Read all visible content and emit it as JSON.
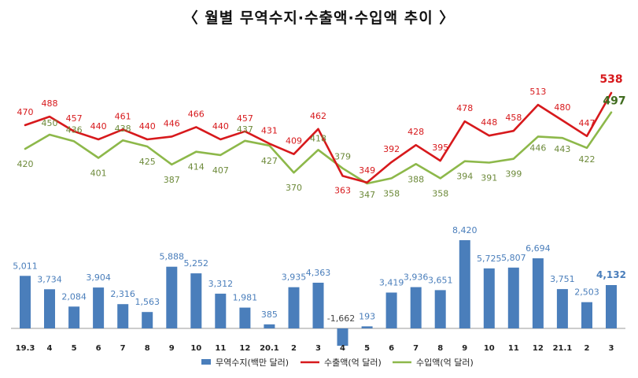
{
  "title": "〈 월별 무역수지·수출액·수입액 추이 〉",
  "chart_data": [
    {
      "type": "line",
      "categories": [
        "19.3",
        "4",
        "5",
        "6",
        "7",
        "8",
        "9",
        "10",
        "11",
        "12",
        "20.1",
        "2",
        "3",
        "4",
        "5",
        "6",
        "7",
        "8",
        "9",
        "10",
        "11",
        "12",
        "21.1",
        "2",
        "3"
      ],
      "series": [
        {
          "name": "수출액(억 달러)",
          "color": "#d7191c",
          "values": [
            470,
            488,
            457,
            440,
            461,
            440,
            446,
            466,
            440,
            457,
            431,
            409,
            462,
            363,
            349,
            392,
            428,
            395,
            478,
            448,
            458,
            513,
            480,
            447,
            538
          ]
        },
        {
          "name": "수입액(억 달러)",
          "color": "#8db84a",
          "values": [
            420,
            450,
            436,
            401,
            438,
            425,
            387,
            414,
            407,
            437,
            427,
            370,
            418,
            379,
            347,
            358,
            388,
            358,
            394,
            391,
            399,
            446,
            443,
            422,
            497
          ]
        }
      ],
      "ylim": [
        340,
        545
      ]
    },
    {
      "type": "bar",
      "categories": [
        "19.3",
        "4",
        "5",
        "6",
        "7",
        "8",
        "9",
        "10",
        "11",
        "12",
        "20.1",
        "2",
        "3",
        "4",
        "5",
        "6",
        "7",
        "8",
        "9",
        "10",
        "11",
        "12",
        "21.1",
        "2",
        "3"
      ],
      "series": [
        {
          "name": "무역수지(백만 달러)",
          "color": "#4a7ebb",
          "values": [
            5011,
            3734,
            2084,
            3904,
            2316,
            1563,
            5888,
            5252,
            3312,
            1981,
            385,
            3935,
            4363,
            -1662,
            193,
            3419,
            3936,
            3651,
            8420,
            5725,
            5807,
            6694,
            3751,
            2503,
            4132
          ],
          "labels": [
            "5,011",
            "3,734",
            "2,084",
            "3,904",
            "2,316",
            "1,563",
            "5,888",
            "5,252",
            "3,312",
            "1,981",
            "385",
            "3,935",
            "4,363",
            "-1,662",
            "193",
            "3,419",
            "3,936",
            "3,651",
            "8,420",
            "5,725",
            "5,807",
            "6,694",
            "3,751",
            "2,503",
            "4,132"
          ]
        }
      ],
      "ylim": [
        -1800,
        8800
      ]
    }
  ],
  "legend": [
    {
      "label": "무역수지(백만 달러)",
      "kind": "bar",
      "color": "#4a7ebb"
    },
    {
      "label": "수출액(억 달러)",
      "kind": "line",
      "color": "#d7191c"
    },
    {
      "label": "수입액(억 달러)",
      "kind": "line",
      "color": "#8db84a"
    }
  ]
}
